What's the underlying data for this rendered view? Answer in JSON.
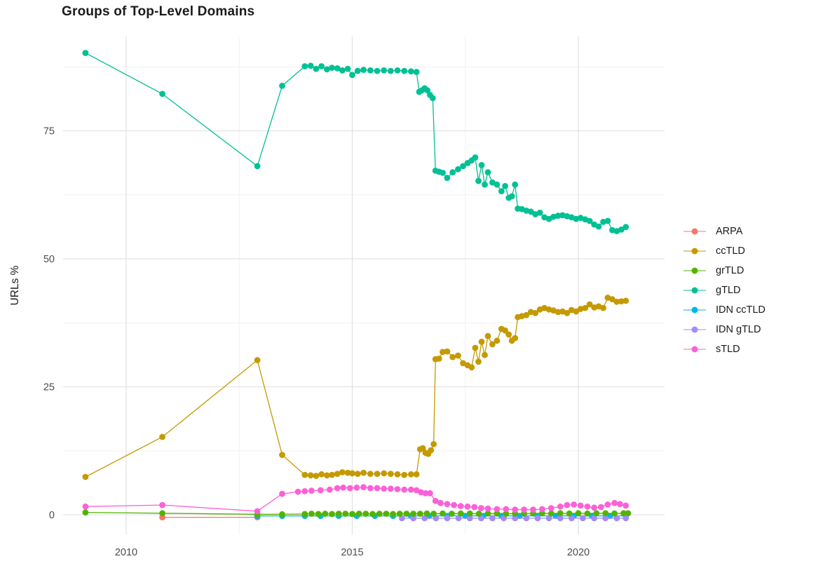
{
  "title": "Groups of Top-Level Domains",
  "axes": {
    "y_label": "URLs %",
    "y_tick_labels": [
      "0",
      "25",
      "50",
      "75"
    ],
    "x_tick_labels": [
      "2010",
      "2015",
      "2020"
    ]
  },
  "chart_data": {
    "type": "line",
    "title": "Groups of Top-Level Domains",
    "xlabel": "",
    "ylabel": "URLs %",
    "x_range": [
      2008.6,
      2021.9
    ],
    "y_range": [
      -1,
      93
    ],
    "x_major_ticks": [
      2010,
      2015,
      2020
    ],
    "x_minor_ticks": [
      2012.5,
      2017.5
    ],
    "y_major_ticks": [
      0,
      25,
      50,
      75
    ],
    "y_minor_ticks": [
      12.5,
      37.5,
      62.5,
      87.5
    ],
    "grid": true,
    "legend_position": "right",
    "series": [
      {
        "name": "ARPA",
        "color": "#F8766D",
        "points": [
          [
            2010.8,
            0.05
          ],
          [
            2012.9,
            0.05
          ]
        ]
      },
      {
        "name": "ccTLD",
        "color": "#C49A00",
        "points": [
          [
            2009.1,
            7.4
          ],
          [
            2010.8,
            15.2
          ],
          [
            2012.9,
            30.2
          ],
          [
            2013.45,
            11.7
          ],
          [
            2013.95,
            7.8
          ],
          [
            2014.08,
            7.7
          ],
          [
            2014.2,
            7.6
          ],
          [
            2014.32,
            7.9
          ],
          [
            2014.44,
            7.7
          ],
          [
            2014.55,
            7.8
          ],
          [
            2014.67,
            8.0
          ],
          [
            2014.78,
            8.3
          ],
          [
            2014.9,
            8.2
          ],
          [
            2015.0,
            8.1
          ],
          [
            2015.12,
            8.0
          ],
          [
            2015.25,
            8.2
          ],
          [
            2015.4,
            8.0
          ],
          [
            2015.55,
            8.0
          ],
          [
            2015.7,
            8.1
          ],
          [
            2015.85,
            8.0
          ],
          [
            2016.0,
            7.9
          ],
          [
            2016.15,
            7.8
          ],
          [
            2016.3,
            7.9
          ],
          [
            2016.42,
            7.9
          ],
          [
            2016.5,
            12.8
          ],
          [
            2016.56,
            13.0
          ],
          [
            2016.62,
            12.1
          ],
          [
            2016.68,
            11.9
          ],
          [
            2016.74,
            12.6
          ],
          [
            2016.8,
            13.8
          ],
          [
            2016.84,
            30.4
          ],
          [
            2016.92,
            30.5
          ],
          [
            2017.0,
            31.8
          ],
          [
            2017.1,
            31.9
          ],
          [
            2017.22,
            30.8
          ],
          [
            2017.34,
            31.1
          ],
          [
            2017.45,
            29.6
          ],
          [
            2017.55,
            29.2
          ],
          [
            2017.64,
            28.8
          ],
          [
            2017.72,
            32.6
          ],
          [
            2017.79,
            29.9
          ],
          [
            2017.86,
            33.8
          ],
          [
            2017.93,
            31.2
          ],
          [
            2018.0,
            34.9
          ],
          [
            2018.1,
            33.3
          ],
          [
            2018.2,
            34.0
          ],
          [
            2018.3,
            36.3
          ],
          [
            2018.38,
            36.0
          ],
          [
            2018.46,
            35.2
          ],
          [
            2018.53,
            34.0
          ],
          [
            2018.6,
            34.5
          ],
          [
            2018.66,
            38.6
          ],
          [
            2018.75,
            38.8
          ],
          [
            2018.85,
            39.0
          ],
          [
            2018.95,
            39.6
          ],
          [
            2019.05,
            39.4
          ],
          [
            2019.15,
            40.1
          ],
          [
            2019.25,
            40.4
          ],
          [
            2019.35,
            40.1
          ],
          [
            2019.45,
            39.9
          ],
          [
            2019.55,
            39.6
          ],
          [
            2019.65,
            39.7
          ],
          [
            2019.75,
            39.4
          ],
          [
            2019.85,
            40.0
          ],
          [
            2019.95,
            39.7
          ],
          [
            2020.05,
            40.2
          ],
          [
            2020.15,
            40.4
          ],
          [
            2020.25,
            41.1
          ],
          [
            2020.35,
            40.5
          ],
          [
            2020.45,
            40.7
          ],
          [
            2020.55,
            40.4
          ],
          [
            2020.65,
            42.4
          ],
          [
            2020.75,
            42.1
          ],
          [
            2020.85,
            41.6
          ],
          [
            2020.95,
            41.7
          ],
          [
            2021.05,
            41.8
          ]
        ]
      },
      {
        "name": "grTLD",
        "color": "#53B400",
        "points": [
          [
            2009.1,
            0.45
          ],
          [
            2010.8,
            0.3
          ],
          [
            2012.9,
            0.1
          ],
          [
            2013.45,
            0.1
          ],
          [
            2013.95,
            0.15
          ],
          [
            2014.1,
            0.2
          ],
          [
            2014.25,
            0.15
          ],
          [
            2014.4,
            0.2
          ],
          [
            2014.55,
            0.15
          ],
          [
            2014.7,
            0.2
          ],
          [
            2014.85,
            0.2
          ],
          [
            2015.0,
            0.15
          ],
          [
            2015.15,
            0.2
          ],
          [
            2015.3,
            0.2
          ],
          [
            2015.45,
            0.15
          ],
          [
            2015.6,
            0.2
          ],
          [
            2015.75,
            0.2
          ],
          [
            2015.9,
            0.15
          ],
          [
            2016.05,
            0.2
          ],
          [
            2016.2,
            0.2
          ],
          [
            2016.35,
            0.2
          ],
          [
            2016.5,
            0.2
          ],
          [
            2016.65,
            0.25
          ],
          [
            2016.8,
            0.2
          ],
          [
            2017.0,
            0.25
          ],
          [
            2017.2,
            0.2
          ],
          [
            2017.4,
            0.25
          ],
          [
            2017.6,
            0.25
          ],
          [
            2017.8,
            0.2
          ],
          [
            2018.0,
            0.25
          ],
          [
            2018.2,
            0.25
          ],
          [
            2018.4,
            0.2
          ],
          [
            2018.6,
            0.25
          ],
          [
            2018.8,
            0.25
          ],
          [
            2019.0,
            0.25
          ],
          [
            2019.2,
            0.3
          ],
          [
            2019.4,
            0.25
          ],
          [
            2019.6,
            0.3
          ],
          [
            2019.8,
            0.25
          ],
          [
            2020.0,
            0.3
          ],
          [
            2020.2,
            0.25
          ],
          [
            2020.4,
            0.3
          ],
          [
            2020.6,
            0.3
          ],
          [
            2020.8,
            0.25
          ],
          [
            2021.0,
            0.3
          ],
          [
            2021.1,
            0.3
          ]
        ]
      },
      {
        "name": "gTLD",
        "color": "#00C094",
        "points": [
          [
            2009.1,
            90.2
          ],
          [
            2010.8,
            82.2
          ],
          [
            2012.9,
            68.1
          ],
          [
            2013.45,
            83.8
          ],
          [
            2013.95,
            87.6
          ],
          [
            2014.08,
            87.7
          ],
          [
            2014.2,
            87.1
          ],
          [
            2014.32,
            87.6
          ],
          [
            2014.44,
            87.0
          ],
          [
            2014.55,
            87.3
          ],
          [
            2014.67,
            87.2
          ],
          [
            2014.78,
            86.8
          ],
          [
            2014.9,
            87.1
          ],
          [
            2015.0,
            85.9
          ],
          [
            2015.12,
            86.7
          ],
          [
            2015.25,
            86.9
          ],
          [
            2015.4,
            86.8
          ],
          [
            2015.55,
            86.7
          ],
          [
            2015.7,
            86.8
          ],
          [
            2015.85,
            86.7
          ],
          [
            2016.0,
            86.8
          ],
          [
            2016.15,
            86.7
          ],
          [
            2016.3,
            86.6
          ],
          [
            2016.42,
            86.5
          ],
          [
            2016.48,
            82.6
          ],
          [
            2016.54,
            82.9
          ],
          [
            2016.6,
            83.3
          ],
          [
            2016.66,
            82.9
          ],
          [
            2016.72,
            82.0
          ],
          [
            2016.78,
            81.4
          ],
          [
            2016.84,
            67.2
          ],
          [
            2016.92,
            67.0
          ],
          [
            2017.0,
            66.8
          ],
          [
            2017.1,
            65.8
          ],
          [
            2017.22,
            66.9
          ],
          [
            2017.34,
            67.5
          ],
          [
            2017.45,
            68.1
          ],
          [
            2017.55,
            68.7
          ],
          [
            2017.64,
            69.2
          ],
          [
            2017.72,
            69.8
          ],
          [
            2017.79,
            65.2
          ],
          [
            2017.86,
            68.3
          ],
          [
            2017.93,
            64.5
          ],
          [
            2018.0,
            66.9
          ],
          [
            2018.1,
            64.9
          ],
          [
            2018.2,
            64.5
          ],
          [
            2018.3,
            63.2
          ],
          [
            2018.38,
            64.2
          ],
          [
            2018.46,
            61.9
          ],
          [
            2018.53,
            62.2
          ],
          [
            2018.6,
            64.5
          ],
          [
            2018.66,
            59.8
          ],
          [
            2018.75,
            59.7
          ],
          [
            2018.85,
            59.4
          ],
          [
            2018.95,
            59.2
          ],
          [
            2019.05,
            58.7
          ],
          [
            2019.15,
            59.0
          ],
          [
            2019.25,
            58.1
          ],
          [
            2019.35,
            57.8
          ],
          [
            2019.45,
            58.2
          ],
          [
            2019.55,
            58.4
          ],
          [
            2019.65,
            58.5
          ],
          [
            2019.75,
            58.3
          ],
          [
            2019.85,
            58.1
          ],
          [
            2019.95,
            57.8
          ],
          [
            2020.05,
            58.0
          ],
          [
            2020.15,
            57.7
          ],
          [
            2020.25,
            57.4
          ],
          [
            2020.35,
            56.7
          ],
          [
            2020.45,
            56.3
          ],
          [
            2020.55,
            57.2
          ],
          [
            2020.65,
            57.4
          ],
          [
            2020.75,
            55.6
          ],
          [
            2020.85,
            55.4
          ],
          [
            2020.95,
            55.7
          ],
          [
            2021.05,
            56.2
          ]
        ]
      },
      {
        "name": "IDN ccTLD",
        "color": "#00B6EB",
        "points": [
          [
            2012.9,
            0.05
          ],
          [
            2013.45,
            0.05
          ],
          [
            2013.95,
            0.05
          ],
          [
            2014.3,
            0.05
          ],
          [
            2014.7,
            0.05
          ],
          [
            2015.1,
            0.05
          ],
          [
            2015.5,
            0.05
          ],
          [
            2015.9,
            0.05
          ],
          [
            2016.3,
            0.05
          ],
          [
            2016.7,
            0.05
          ],
          [
            2017.1,
            0.05
          ],
          [
            2017.5,
            0.05
          ],
          [
            2017.9,
            0.05
          ],
          [
            2018.3,
            0.05
          ],
          [
            2018.7,
            0.05
          ],
          [
            2019.1,
            0.05
          ],
          [
            2019.5,
            0.05
          ],
          [
            2019.9,
            0.05
          ],
          [
            2020.3,
            0.05
          ],
          [
            2020.7,
            0.05
          ],
          [
            2021.05,
            0.05
          ]
        ]
      },
      {
        "name": "IDN gTLD",
        "color": "#A58AFF",
        "points": [
          [
            2016.1,
            0.02
          ],
          [
            2016.35,
            0.02
          ],
          [
            2016.6,
            0.02
          ],
          [
            2016.85,
            0.02
          ],
          [
            2017.1,
            0.02
          ],
          [
            2017.35,
            0.02
          ],
          [
            2017.6,
            0.02
          ],
          [
            2017.85,
            0.02
          ],
          [
            2018.1,
            0.02
          ],
          [
            2018.35,
            0.02
          ],
          [
            2018.6,
            0.02
          ],
          [
            2018.85,
            0.02
          ],
          [
            2019.1,
            0.02
          ],
          [
            2019.35,
            0.02
          ],
          [
            2019.6,
            0.02
          ],
          [
            2019.85,
            0.02
          ],
          [
            2020.1,
            0.02
          ],
          [
            2020.35,
            0.02
          ],
          [
            2020.6,
            0.02
          ],
          [
            2020.85,
            0.02
          ],
          [
            2021.05,
            0.02
          ]
        ]
      },
      {
        "name": "sTLD",
        "color": "#FB61D7",
        "points": [
          [
            2009.1,
            1.6
          ],
          [
            2010.8,
            1.9
          ],
          [
            2012.9,
            0.7
          ],
          [
            2013.45,
            4.1
          ],
          [
            2013.8,
            4.5
          ],
          [
            2013.95,
            4.6
          ],
          [
            2014.1,
            4.7
          ],
          [
            2014.3,
            4.8
          ],
          [
            2014.5,
            4.9
          ],
          [
            2014.67,
            5.2
          ],
          [
            2014.8,
            5.3
          ],
          [
            2014.95,
            5.2
          ],
          [
            2015.1,
            5.3
          ],
          [
            2015.25,
            5.4
          ],
          [
            2015.4,
            5.2
          ],
          [
            2015.55,
            5.2
          ],
          [
            2015.7,
            5.1
          ],
          [
            2015.85,
            5.1
          ],
          [
            2016.0,
            5.0
          ],
          [
            2016.15,
            4.9
          ],
          [
            2016.3,
            4.9
          ],
          [
            2016.42,
            4.8
          ],
          [
            2016.52,
            4.4
          ],
          [
            2016.62,
            4.2
          ],
          [
            2016.72,
            4.2
          ],
          [
            2016.84,
            2.7
          ],
          [
            2016.95,
            2.3
          ],
          [
            2017.1,
            2.1
          ],
          [
            2017.25,
            1.9
          ],
          [
            2017.4,
            1.7
          ],
          [
            2017.55,
            1.6
          ],
          [
            2017.7,
            1.5
          ],
          [
            2017.85,
            1.3
          ],
          [
            2018.0,
            1.2
          ],
          [
            2018.2,
            1.1
          ],
          [
            2018.4,
            1.1
          ],
          [
            2018.6,
            1.0
          ],
          [
            2018.8,
            1.0
          ],
          [
            2019.0,
            1.0
          ],
          [
            2019.2,
            1.1
          ],
          [
            2019.4,
            1.3
          ],
          [
            2019.6,
            1.6
          ],
          [
            2019.75,
            1.9
          ],
          [
            2019.9,
            2.0
          ],
          [
            2020.05,
            1.8
          ],
          [
            2020.2,
            1.6
          ],
          [
            2020.35,
            1.4
          ],
          [
            2020.5,
            1.5
          ],
          [
            2020.65,
            2.0
          ],
          [
            2020.8,
            2.3
          ],
          [
            2020.92,
            2.1
          ],
          [
            2021.05,
            1.8
          ]
        ]
      }
    ]
  }
}
